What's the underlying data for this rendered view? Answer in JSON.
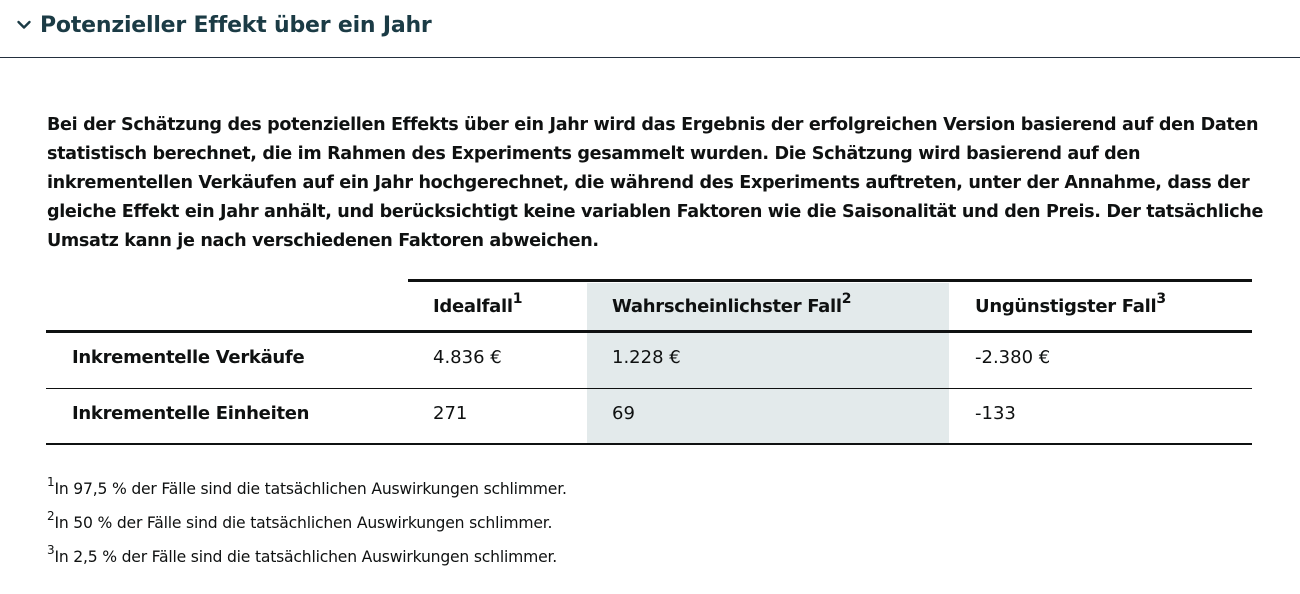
{
  "section": {
    "title": "Potenzieller Effekt über ein Jahr",
    "toggle_icon": "chevron-down-icon"
  },
  "intro": {
    "text": "Bei der Schätzung des potenziellen Effekts über ein Jahr wird das Ergebnis der erfolgreichen Version basierend auf den Daten statistisch berechnet, die im Rahmen des Experiments gesammelt wurden. Die Schätzung wird basierend auf den inkrementellen Verkäufen auf ein Jahr hochgerechnet, die während des Experiments auftreten, unter der Annahme, dass der gleiche Effekt ein Jahr anhält, und berücksichtigt keine variablen Faktoren wie die Saisonalität und den Preis. Der tatsächliche Umsatz kann je nach verschiedenen Faktoren abweichen."
  },
  "table": {
    "columns": [
      {
        "label": "Idealfall",
        "note": "1"
      },
      {
        "label": "Wahrscheinlichster Fall",
        "note": "2"
      },
      {
        "label": "Ungünstigster Fall",
        "note": "3"
      }
    ],
    "rows": [
      {
        "label": "Inkrementelle Verkäufe",
        "values": [
          "4.836 €",
          "1.228 €",
          "-2.380 €"
        ]
      },
      {
        "label": "Inkrementelle Einheiten",
        "values": [
          "271",
          "69",
          "-133"
        ]
      }
    ],
    "highlight_color": "#e3eaeb"
  },
  "footnotes": [
    {
      "mark": "1",
      "text": "In 97,5 % der Fälle sind die tatsächlichen Auswirkungen schlimmer."
    },
    {
      "mark": "2",
      "text": "In 50 % der Fälle sind die tatsächlichen Auswirkungen schlimmer."
    },
    {
      "mark": "3",
      "text": "In 2,5 % der Fälle sind die tatsächlichen Auswirkungen schlimmer."
    }
  ],
  "colors": {
    "title": "#1b3b45",
    "text": "#0f1111"
  }
}
